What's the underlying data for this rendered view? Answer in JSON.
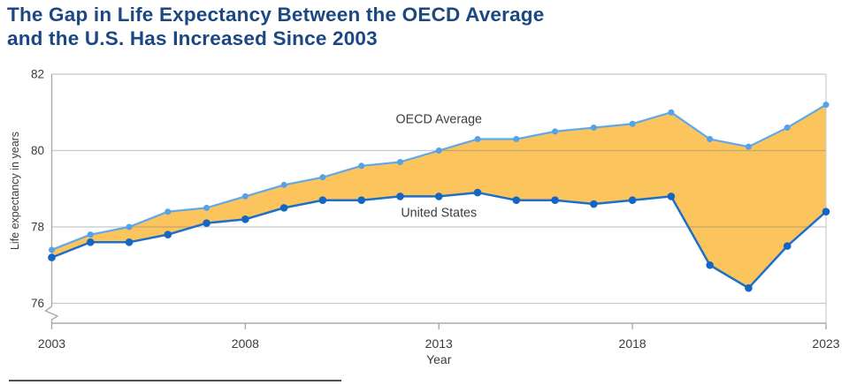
{
  "title": {
    "line1": "The Gap in Life Expectancy Between the OECD Average",
    "line2": "and the U.S. Has Increased Since 2003",
    "color": "#1b4883"
  },
  "chart_data": {
    "type": "line",
    "band_fill_between_series": true,
    "x": [
      2003,
      2004,
      2005,
      2006,
      2007,
      2008,
      2009,
      2010,
      2011,
      2012,
      2013,
      2014,
      2015,
      2016,
      2017,
      2018,
      2019,
      2020,
      2021,
      2022,
      2023
    ],
    "series": [
      {
        "name": "OECD Average",
        "color": "#5fa8eb",
        "marker_color": "#55a2e8",
        "values": [
          77.4,
          77.8,
          78.0,
          78.4,
          78.5,
          78.8,
          79.1,
          79.3,
          79.6,
          79.7,
          80.0,
          80.3,
          80.3,
          80.5,
          80.6,
          80.7,
          81.0,
          80.3,
          80.1,
          80.6,
          81.2
        ]
      },
      {
        "name": "United States",
        "color": "#1e6fc9",
        "marker_color": "#1565c2",
        "values": [
          77.2,
          77.6,
          77.6,
          77.8,
          78.1,
          78.2,
          78.5,
          78.7,
          78.7,
          78.8,
          78.8,
          78.9,
          78.7,
          78.7,
          78.6,
          78.7,
          78.8,
          77.0,
          76.4,
          77.5,
          78.4
        ]
      }
    ],
    "band_fill_color": "#fbc45c",
    "xlabel": "Year",
    "ylabel": "Life expectancy in years",
    "xlim": [
      2003,
      2023
    ],
    "ylim": [
      76,
      82
    ],
    "yticks": [
      76,
      78,
      80,
      82
    ],
    "xticks": [
      2003,
      2008,
      2013,
      2018,
      2023
    ],
    "y_axis_break": true,
    "grid": "horizontal",
    "legend": "inline-annotations",
    "annotations": [
      {
        "text": "OECD Average",
        "x": 2013,
        "y": 80.83
      },
      {
        "text": "United States",
        "x": 2013,
        "y": 78.38
      }
    ],
    "text_color": "#3b3b3b",
    "gridline_color": "#c9c9c9",
    "axis_color": "#ababab"
  }
}
